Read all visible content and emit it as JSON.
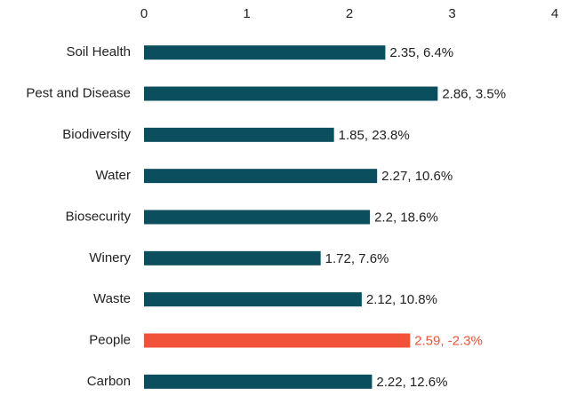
{
  "chart_data": {
    "type": "hbar",
    "categories": [
      "Soil Health",
      "Pest and Disease",
      "Biodiversity",
      "Water",
      "Biosecurity",
      "Winery",
      "Waste",
      "People",
      "Carbon"
    ],
    "values": [
      2.35,
      2.86,
      1.85,
      2.27,
      2.2,
      1.72,
      2.12,
      2.59,
      2.22
    ],
    "value_labels": [
      "2.35, 6.4%",
      "2.86, 3.5%",
      "1.85, 23.8%",
      "2.27, 10.6%",
      "2.2, 18.6%",
      "1.72, 7.6%",
      "2.12, 10.8%",
      "2.59, -2.3%",
      "2.22, 12.6%"
    ],
    "colors": [
      "#0b4f5e",
      "#0b4f5e",
      "#0b4f5e",
      "#0b4f5e",
      "#0b4f5e",
      "#0b4f5e",
      "#0b4f5e",
      "#f0533a",
      "#0b4f5e"
    ],
    "label_colors": [
      "#222222",
      "#222222",
      "#222222",
      "#222222",
      "#222222",
      "#222222",
      "#222222",
      "#f0533a",
      "#222222"
    ],
    "xlim": [
      0,
      4
    ],
    "xticks": [
      0,
      1,
      2,
      3,
      4
    ],
    "grid": false
  }
}
